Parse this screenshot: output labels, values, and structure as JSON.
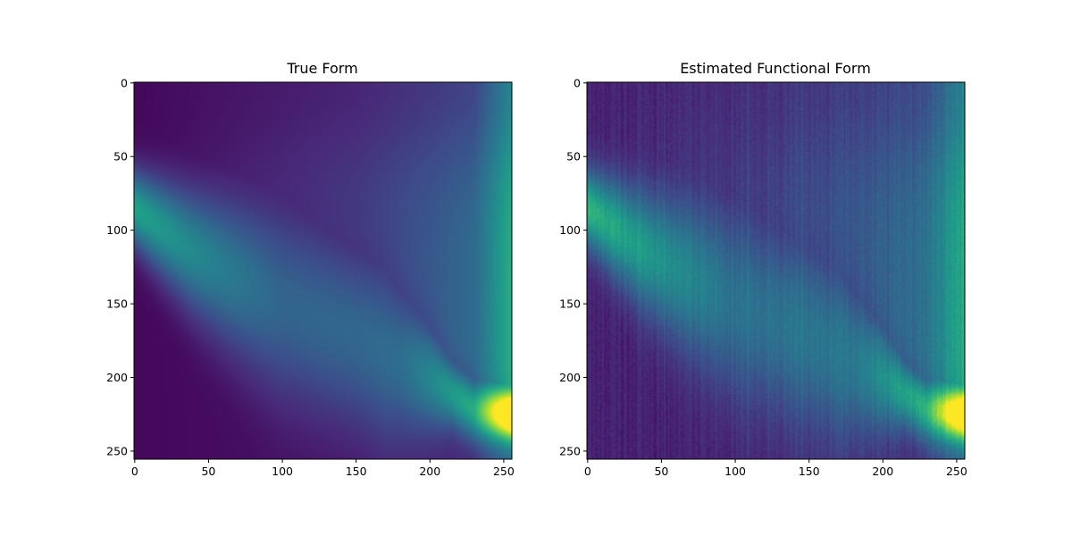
{
  "chart_data": [
    {
      "type": "heatmap",
      "title": "True Form",
      "xlabel": "",
      "ylabel": "",
      "xlim": [
        0,
        255
      ],
      "ylim": [
        255,
        0
      ],
      "y_inverted": true,
      "xticks": [
        0,
        50,
        100,
        150,
        200,
        250
      ],
      "yticks": [
        0,
        50,
        100,
        150,
        200,
        250
      ],
      "colormap": "viridis",
      "value_range": [
        0,
        1
      ],
      "grid": false,
      "noise": 0,
      "surface": {
        "description_values": "Column-wise Gaussian ridge; ridge centre row and width vary with column; intensity rises toward right edge",
        "ridge_center": [
          [
            0,
            85
          ],
          [
            40,
            115
          ],
          [
            100,
            150
          ],
          [
            150,
            172
          ],
          [
            200,
            200
          ],
          [
            230,
            222
          ],
          [
            255,
            225
          ]
        ],
        "ridge_sigma": [
          [
            0,
            18
          ],
          [
            100,
            45
          ],
          [
            170,
            42
          ],
          [
            215,
            16
          ],
          [
            255,
            12
          ]
        ],
        "ridge_peak": [
          [
            0,
            0.55
          ],
          [
            100,
            0.28
          ],
          [
            180,
            0.28
          ],
          [
            230,
            0.5
          ],
          [
            255,
            1.0
          ]
        ],
        "background": [
          [
            0,
            0.02
          ],
          [
            150,
            0.05
          ],
          [
            230,
            0.12
          ],
          [
            255,
            0.35
          ]
        ],
        "upper_tail": [
          [
            0,
            0.0
          ],
          [
            100,
            0.2
          ],
          [
            200,
            0.4
          ],
          [
            255,
            0.6
          ]
        ]
      }
    },
    {
      "type": "heatmap",
      "title": "Estimated Functional Form",
      "xlabel": "",
      "ylabel": "",
      "xlim": [
        0,
        255
      ],
      "ylim": [
        255,
        0
      ],
      "y_inverted": true,
      "xticks": [
        0,
        50,
        100,
        150,
        200,
        250
      ],
      "yticks": [
        0,
        50,
        100,
        150,
        200,
        250
      ],
      "colormap": "viridis",
      "value_range": [
        0,
        1
      ],
      "grid": false,
      "noise": 0.06,
      "surface": {
        "ridge_center": [
          [
            0,
            85
          ],
          [
            40,
            115
          ],
          [
            100,
            150
          ],
          [
            150,
            172
          ],
          [
            200,
            200
          ],
          [
            230,
            222
          ],
          [
            255,
            225
          ]
        ],
        "ridge_sigma": [
          [
            0,
            18
          ],
          [
            100,
            45
          ],
          [
            170,
            42
          ],
          [
            215,
            16
          ],
          [
            255,
            12
          ]
        ],
        "ridge_peak": [
          [
            0,
            0.55
          ],
          [
            100,
            0.28
          ],
          [
            180,
            0.28
          ],
          [
            230,
            0.5
          ],
          [
            255,
            1.0
          ]
        ],
        "background": [
          [
            0,
            0.09
          ],
          [
            150,
            0.11
          ],
          [
            230,
            0.15
          ],
          [
            255,
            0.35
          ]
        ],
        "upper_tail": [
          [
            0,
            0.0
          ],
          [
            100,
            0.2
          ],
          [
            200,
            0.4
          ],
          [
            255,
            0.6
          ]
        ]
      }
    }
  ]
}
